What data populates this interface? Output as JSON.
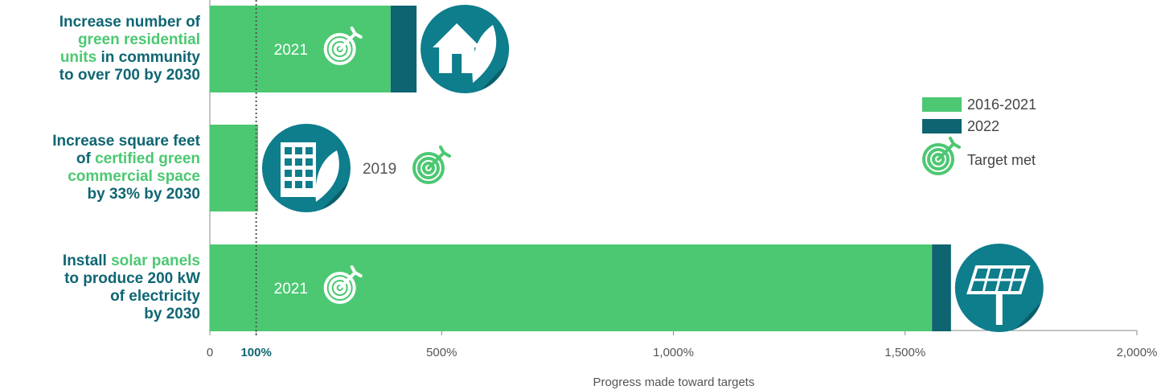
{
  "chart_data": {
    "type": "stacked_barh",
    "categories": [
      [
        [
          {
            "text": "Increase number of",
            "highlight": false
          }
        ],
        [
          {
            "text": "green residential",
            "highlight": true
          }
        ],
        [
          {
            "text": "units",
            "highlight": true
          },
          {
            "text": " in community",
            "highlight": false
          }
        ],
        [
          {
            "text": "to over 700 by 2030",
            "highlight": false
          }
        ]
      ],
      [
        [
          {
            "text": "Increase square feet",
            "highlight": false
          }
        ],
        [
          {
            "text": "of ",
            "highlight": false
          },
          {
            "text": "certified green",
            "highlight": true
          }
        ],
        [
          {
            "text": "commercial space",
            "highlight": true
          }
        ],
        [
          {
            "text": "by 33% by 2030",
            "highlight": false
          }
        ]
      ],
      [
        [
          {
            "text": "Install ",
            "highlight": false
          },
          {
            "text": "solar panels",
            "highlight": true
          }
        ],
        [
          {
            "text": "to produce 200 kW",
            "highlight": false
          }
        ],
        [
          {
            "text": "of electricity",
            "highlight": false
          }
        ],
        [
          {
            "text": "by 2030",
            "highlight": false
          }
        ]
      ]
    ],
    "series": [
      {
        "name": "2016-2021",
        "color": "#4cc872",
        "values": [
          390,
          104,
          1558
        ]
      },
      {
        "name": "2022",
        "color": "#0e6470",
        "values": [
          56,
          0,
          41
        ]
      }
    ],
    "target_label": "Target met",
    "target_years": [
      "2021",
      "2019",
      "2021"
    ],
    "target_line": 100,
    "xlim": [
      0,
      2000
    ],
    "xticks": [
      0,
      {
        "value": 100,
        "label": "100%"
      },
      {
        "value": 500,
        "label": "500%"
      },
      {
        "value": 1000,
        "label": "1,000%"
      },
      {
        "value": 1500,
        "label": "1,500%"
      },
      {
        "value": 2000,
        "label": "2,000%"
      }
    ],
    "xlabel": "Progress made toward targets",
    "text_color": "#0f6673",
    "highlight_color": "#4cc872",
    "legend": "right"
  }
}
